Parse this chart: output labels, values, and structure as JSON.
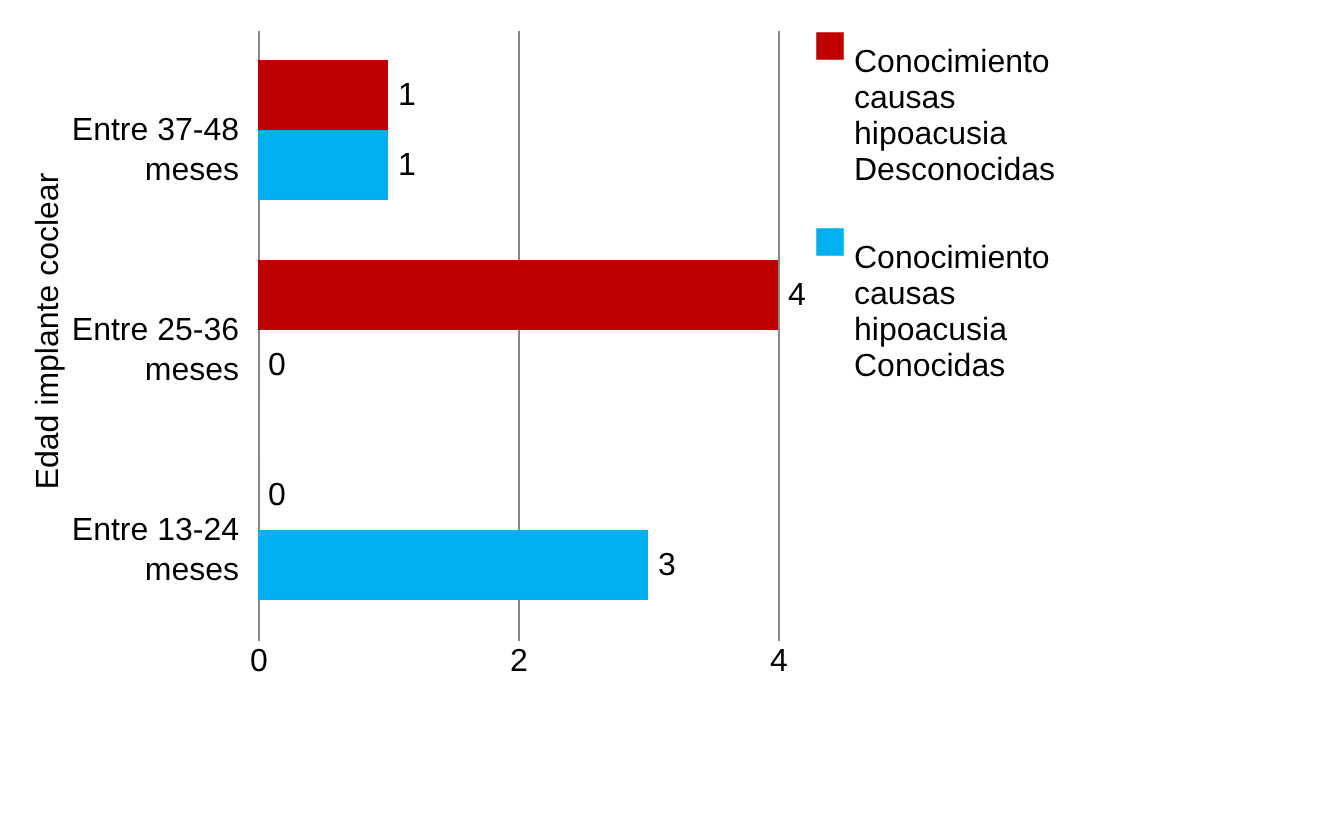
{
  "chart_data": {
    "type": "bar",
    "orientation": "horizontal",
    "ylabel": "Edad implante coclear",
    "categories": [
      "Entre 37-48 meses",
      "Entre 25-36 meses",
      "Entre 13-24 meses"
    ],
    "series": [
      {
        "name": "Conocimiento causas hipoacusia Desconocidas",
        "color": "#c00000",
        "values": [
          1,
          4,
          0
        ]
      },
      {
        "name": "Conocimiento causas hipoacusia Conocidas",
        "color": "#00b0f0",
        "values": [
          1,
          0,
          3
        ]
      }
    ],
    "xlim": [
      0,
      4
    ],
    "xticks": [
      0,
      2,
      4
    ],
    "grid": "x",
    "legend": "right",
    "data_labels": true
  }
}
